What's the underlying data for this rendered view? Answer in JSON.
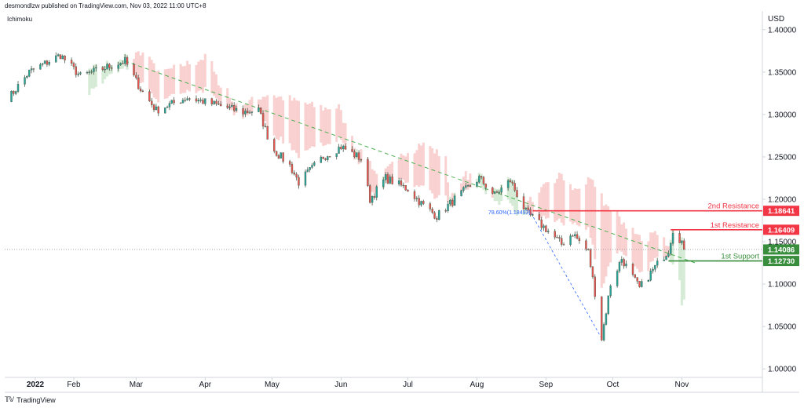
{
  "header": {
    "publisher_line": "desmondlzw published on TradingView.com, Nov 03, 2022 11:00 UTC+8"
  },
  "indicator": {
    "label": "Ichimoku"
  },
  "footer": {
    "logo_icon": "tradingview-logo-icon",
    "brand": "TradingView"
  },
  "colors": {
    "up": "#26a69a",
    "down": "#ef5350",
    "candle_dark": "#4a5a4a",
    "resistance": "#f23645",
    "support": "#388e3c",
    "trendline": "#4caf50",
    "fib": "#2962ff",
    "cloud_bear": "#f8c9c9",
    "cloud_bull": "#cfe8cf"
  },
  "chart_data": {
    "type": "candlestick",
    "title": "",
    "currency": "USD",
    "x_ticks": [
      "2022",
      "Feb",
      "Mar",
      "Apr",
      "May",
      "Jun",
      "Jul",
      "Aug",
      "Sep",
      "Oct",
      "Nov"
    ],
    "y_ticks": [
      "1.40000",
      "1.35000",
      "1.30000",
      "1.25000",
      "1.20000",
      "1.15000",
      "1.10000",
      "1.05000",
      "1.00000"
    ],
    "ylim": [
      0.99,
      1.422
    ],
    "grid": false,
    "price_path": [
      [
        "2022-01-03",
        1.32
      ],
      [
        "2022-01-12",
        1.35
      ],
      [
        "2022-01-26",
        1.37
      ],
      [
        "2022-02-04",
        1.345
      ],
      [
        "2022-02-15",
        1.355
      ],
      [
        "2022-02-24",
        1.363
      ],
      [
        "2022-03-03",
        1.33
      ],
      [
        "2022-03-10",
        1.305
      ],
      [
        "2022-03-24",
        1.32
      ],
      [
        "2022-04-05",
        1.312
      ],
      [
        "2022-04-18",
        1.303
      ],
      [
        "2022-04-25",
        1.305
      ],
      [
        "2022-05-01",
        1.26
      ],
      [
        "2022-05-09",
        1.24
      ],
      [
        "2022-05-13",
        1.22
      ],
      [
        "2022-05-24",
        1.25
      ],
      [
        "2022-06-01",
        1.262
      ],
      [
        "2022-06-10",
        1.248
      ],
      [
        "2022-06-14",
        1.2
      ],
      [
        "2022-06-21",
        1.225
      ],
      [
        "2022-07-01",
        1.212
      ],
      [
        "2022-07-07",
        1.195
      ],
      [
        "2022-07-14",
        1.18
      ],
      [
        "2022-07-22",
        1.2
      ],
      [
        "2022-08-02",
        1.225
      ],
      [
        "2022-08-09",
        1.205
      ],
      [
        "2022-08-16",
        1.222
      ],
      [
        "2022-08-23",
        1.185
      ],
      [
        "2022-09-01",
        1.165
      ],
      [
        "2022-09-08",
        1.147
      ],
      [
        "2022-09-13",
        1.16
      ],
      [
        "2022-09-20",
        1.138
      ],
      [
        "2022-09-23",
        1.09
      ],
      [
        "2022-09-26",
        1.036
      ],
      [
        "2022-09-30",
        1.1
      ],
      [
        "2022-10-05",
        1.13
      ],
      [
        "2022-10-13",
        1.095
      ],
      [
        "2022-10-20",
        1.12
      ],
      [
        "2022-10-26",
        1.14
      ],
      [
        "2022-10-28",
        1.164
      ],
      [
        "2022-11-01",
        1.15
      ],
      [
        "2022-11-02",
        1.141
      ]
    ],
    "last_price": "1.14086",
    "levels": [
      {
        "name": "2nd Resistance",
        "value": 1.18641,
        "label": "1.18641",
        "kind": "resistance"
      },
      {
        "name": "1st Resistance",
        "value": 1.16409,
        "label": "1.16409",
        "kind": "resistance"
      },
      {
        "name": "1st Support",
        "value": 1.1273,
        "label": "1.12730",
        "kind": "support"
      }
    ],
    "fib_label": "78.60%(1.18493)",
    "trendline": {
      "start": [
        "2022-02-24",
        1.363
      ],
      "end": [
        "2022-11-07",
        1.125
      ]
    },
    "fib_line": {
      "start": [
        "2022-09-26",
        1.036
      ],
      "end": [
        "2022-08-25",
        1.185
      ]
    }
  }
}
